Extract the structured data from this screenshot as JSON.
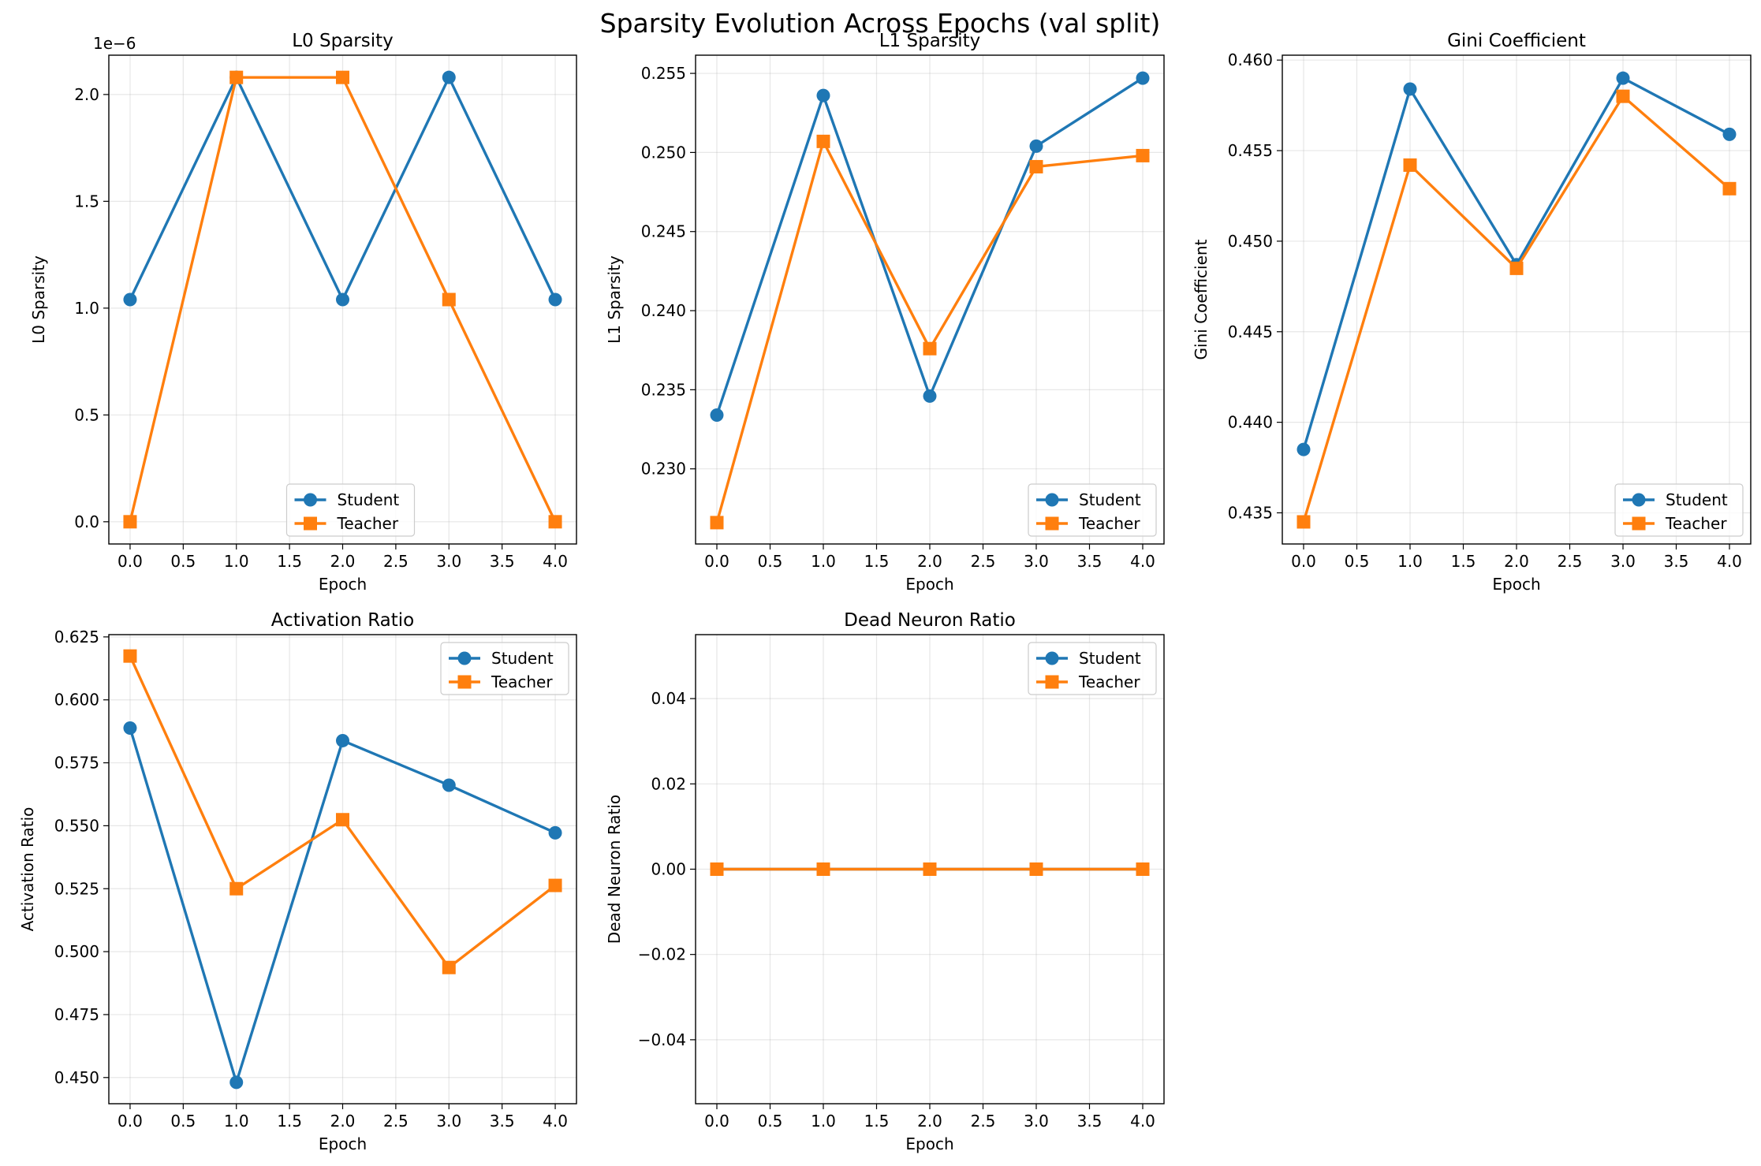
{
  "title": "Sparsity Evolution Across Epochs (val split)",
  "colors": {
    "student": "#1f77b4",
    "teacher": "#ff7f0e"
  },
  "chart_data": [
    {
      "type": "line",
      "title": "L0 Sparsity",
      "xlabel": "Epoch",
      "ylabel": "L0 Sparsity",
      "offset_label": "1e−6",
      "xlim": [
        -0.2,
        4.2
      ],
      "ylim": [
        -0.104,
        2.184
      ],
      "xticks": [
        0,
        0.5,
        1,
        1.5,
        2,
        2.5,
        3,
        3.5,
        4
      ],
      "xtick_labels": [
        "0.0",
        "0.5",
        "1.0",
        "1.5",
        "2.0",
        "2.5",
        "3.0",
        "3.5",
        "4.0"
      ],
      "yticks": [
        0,
        0.5,
        1.0,
        1.5,
        2.0
      ],
      "ytick_labels": [
        "0.0",
        "0.5",
        "1.0",
        "1.5",
        "2.0"
      ],
      "x": [
        0,
        1,
        2,
        3,
        4
      ],
      "series": [
        {
          "name": "Student",
          "marker": "circle",
          "values": [
            1.04,
            2.08,
            1.04,
            2.08,
            1.04
          ]
        },
        {
          "name": "Teacher",
          "marker": "square",
          "values": [
            0,
            2.08,
            2.08,
            1.04,
            0
          ]
        }
      ],
      "grid": true,
      "legend": "lower-center"
    },
    {
      "type": "line",
      "title": "L1 Sparsity",
      "xlabel": "Epoch",
      "ylabel": "L1 Sparsity",
      "xlim": [
        -0.2,
        4.2
      ],
      "ylim": [
        0.22525,
        0.25615
      ],
      "xticks": [
        0,
        0.5,
        1,
        1.5,
        2,
        2.5,
        3,
        3.5,
        4
      ],
      "xtick_labels": [
        "0.0",
        "0.5",
        "1.0",
        "1.5",
        "2.0",
        "2.5",
        "3.0",
        "3.5",
        "4.0"
      ],
      "yticks": [
        0.23,
        0.235,
        0.24,
        0.245,
        0.25,
        0.255
      ],
      "ytick_labels": [
        "0.230",
        "0.235",
        "0.240",
        "0.245",
        "0.250",
        "0.255"
      ],
      "x": [
        0,
        1,
        2,
        3,
        4
      ],
      "series": [
        {
          "name": "Student",
          "marker": "circle",
          "values": [
            0.2334,
            0.2536,
            0.2346,
            0.2504,
            0.2547
          ]
        },
        {
          "name": "Teacher",
          "marker": "square",
          "values": [
            0.2266,
            0.2507,
            0.2376,
            0.2491,
            0.2498
          ]
        }
      ],
      "grid": true,
      "legend": "lower-right"
    },
    {
      "type": "line",
      "title": "Gini Coefficient",
      "xlabel": "Epoch",
      "ylabel": "Gini Coefficient",
      "xlim": [
        -0.2,
        4.2
      ],
      "ylim": [
        0.43328,
        0.46027
      ],
      "xticks": [
        0,
        0.5,
        1,
        1.5,
        2,
        2.5,
        3,
        3.5,
        4
      ],
      "xtick_labels": [
        "0.0",
        "0.5",
        "1.0",
        "1.5",
        "2.0",
        "2.5",
        "3.0",
        "3.5",
        "4.0"
      ],
      "yticks": [
        0.435,
        0.44,
        0.445,
        0.45,
        0.455,
        0.46
      ],
      "ytick_labels": [
        "0.435",
        "0.440",
        "0.445",
        "0.450",
        "0.455",
        "0.460"
      ],
      "x": [
        0,
        1,
        2,
        3,
        4
      ],
      "series": [
        {
          "name": "Student",
          "marker": "circle",
          "values": [
            0.4385,
            0.4584,
            0.4487,
            0.459,
            0.4559
          ]
        },
        {
          "name": "Teacher",
          "marker": "square",
          "values": [
            0.4345,
            0.4542,
            0.4485,
            0.458,
            0.4529
          ]
        }
      ],
      "grid": true,
      "legend": "lower-right"
    },
    {
      "type": "line",
      "title": "Activation Ratio",
      "xlabel": "Epoch",
      "ylabel": "Activation Ratio",
      "xlim": [
        -0.2,
        4.2
      ],
      "ylim": [
        0.4396,
        0.6259
      ],
      "xticks": [
        0,
        0.5,
        1,
        1.5,
        2,
        2.5,
        3,
        3.5,
        4
      ],
      "xtick_labels": [
        "0.0",
        "0.5",
        "1.0",
        "1.5",
        "2.0",
        "2.5",
        "3.0",
        "3.5",
        "4.0"
      ],
      "yticks": [
        0.45,
        0.475,
        0.5,
        0.525,
        0.55,
        0.575,
        0.6,
        0.625
      ],
      "ytick_labels": [
        "0.450",
        "0.475",
        "0.500",
        "0.525",
        "0.550",
        "0.575",
        "0.600",
        "0.625"
      ],
      "x": [
        0,
        1,
        2,
        3,
        4
      ],
      "series": [
        {
          "name": "Student",
          "marker": "circle",
          "values": [
            0.5888,
            0.4481,
            0.5838,
            0.5661,
            0.5472
          ]
        },
        {
          "name": "Teacher",
          "marker": "square",
          "values": [
            0.6174,
            0.525,
            0.5524,
            0.4937,
            0.5263
          ]
        }
      ],
      "grid": true,
      "legend": "upper-right"
    },
    {
      "type": "line",
      "title": "Dead Neuron Ratio",
      "xlabel": "Epoch",
      "ylabel": "Dead Neuron Ratio",
      "xlim": [
        -0.2,
        4.2
      ],
      "ylim": [
        -0.055,
        0.055
      ],
      "xticks": [
        0,
        0.5,
        1,
        1.5,
        2,
        2.5,
        3,
        3.5,
        4
      ],
      "xtick_labels": [
        "0.0",
        "0.5",
        "1.0",
        "1.5",
        "2.0",
        "2.5",
        "3.0",
        "3.5",
        "4.0"
      ],
      "yticks": [
        -0.04,
        -0.02,
        0.0,
        0.02,
        0.04
      ],
      "ytick_labels": [
        "−0.04",
        "−0.02",
        "0.00",
        "0.02",
        "0.04"
      ],
      "x": [
        0,
        1,
        2,
        3,
        4
      ],
      "series": [
        {
          "name": "Student",
          "marker": "circle",
          "values": [
            0,
            0,
            0,
            0,
            0
          ]
        },
        {
          "name": "Teacher",
          "marker": "square",
          "values": [
            0,
            0,
            0,
            0,
            0
          ]
        }
      ],
      "grid": true,
      "legend": "upper-right"
    }
  ]
}
